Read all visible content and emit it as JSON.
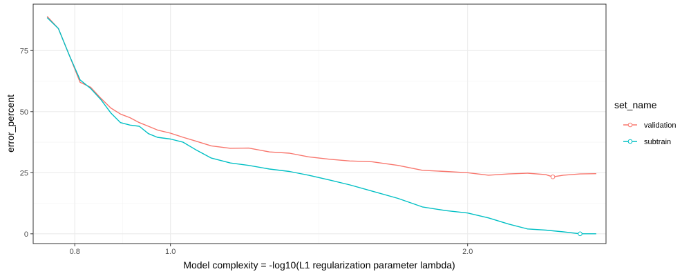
{
  "chart_data": {
    "type": "line",
    "xlabel": "Model complexity = -log10(L1 regularization parameter lambda)",
    "ylabel": "error_percent",
    "x_scale": "log",
    "x_ticks": [
      0.8,
      1.0,
      2.0
    ],
    "x_tick_labels": [
      "0.8",
      "1.0",
      "2.0"
    ],
    "xlim": [
      0.726,
      2.762
    ],
    "y_ticks": [
      0,
      25,
      50,
      75
    ],
    "y_tick_labels": [
      "0",
      "25",
      "50",
      "75"
    ],
    "ylim": [
      -4,
      94
    ],
    "grid": true,
    "legend": {
      "title": "set_name",
      "position": "right"
    },
    "series": [
      {
        "name": "validation",
        "color": "#F8766D",
        "min_point": {
          "x": 2.44,
          "y": 23.3
        },
        "x": [
          0.75,
          0.77,
          0.79,
          0.81,
          0.83,
          0.85,
          0.87,
          0.89,
          0.91,
          0.93,
          0.95,
          0.97,
          1.0,
          1.03,
          1.06,
          1.1,
          1.15,
          1.2,
          1.26,
          1.32,
          1.38,
          1.45,
          1.52,
          1.6,
          1.7,
          1.8,
          1.9,
          2.0,
          2.1,
          2.2,
          2.3,
          2.4,
          2.44,
          2.5,
          2.6,
          2.7
        ],
        "y": [
          89.0,
          84.0,
          73.0,
          62.0,
          60.0,
          55.5,
          51.5,
          49.0,
          47.5,
          45.5,
          44.0,
          42.5,
          41.2,
          39.5,
          38.0,
          36.0,
          35.0,
          35.1,
          33.5,
          33.0,
          31.5,
          30.5,
          29.8,
          29.5,
          28.0,
          26.0,
          25.5,
          25.0,
          24.0,
          24.5,
          24.8,
          24.2,
          23.3,
          24.0,
          24.5,
          24.6
        ]
      },
      {
        "name": "subtrain",
        "color": "#00BFC4",
        "min_point": {
          "x": 2.6,
          "y": 0.0
        },
        "x": [
          0.75,
          0.77,
          0.79,
          0.81,
          0.83,
          0.85,
          0.87,
          0.89,
          0.91,
          0.93,
          0.95,
          0.97,
          1.0,
          1.03,
          1.06,
          1.1,
          1.15,
          1.2,
          1.26,
          1.32,
          1.38,
          1.45,
          1.52,
          1.6,
          1.7,
          1.8,
          1.9,
          2.0,
          2.1,
          2.2,
          2.3,
          2.4,
          2.5,
          2.6,
          2.7
        ],
        "y": [
          88.5,
          84.0,
          73.0,
          63.0,
          59.5,
          55.0,
          49.5,
          45.5,
          44.5,
          44.0,
          41.0,
          39.5,
          38.8,
          37.5,
          34.5,
          31.0,
          29.0,
          28.0,
          26.5,
          25.5,
          24.0,
          22.0,
          20.0,
          17.5,
          14.5,
          11.0,
          9.5,
          8.5,
          6.5,
          4.0,
          2.0,
          1.5,
          0.8,
          0.0,
          0.0
        ]
      }
    ]
  }
}
